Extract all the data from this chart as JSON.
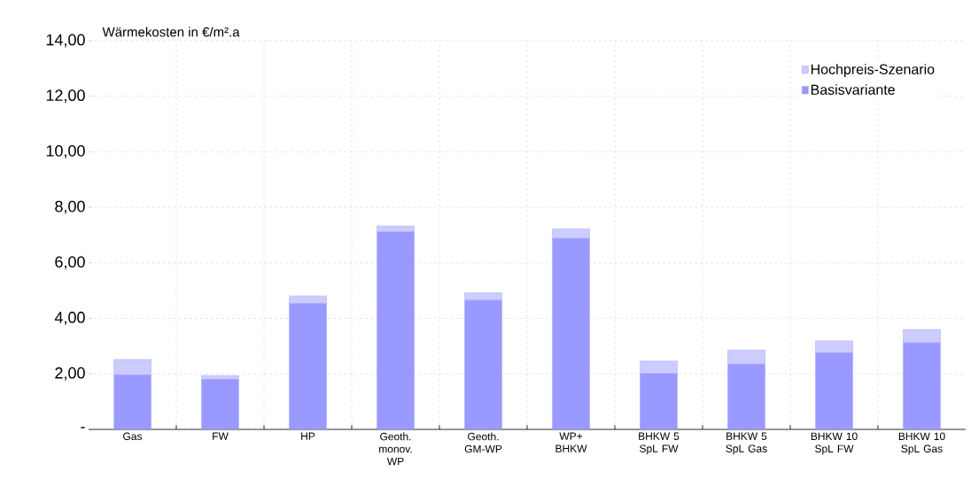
{
  "chart_data": {
    "type": "bar",
    "stacked": true,
    "ylabel": "Wärmekosten in €/m².a",
    "categories": [
      "Gas",
      "FW",
      "HP",
      "Geoth. monov. WP",
      "Geoth. GM-WP",
      "WP+ BHKW",
      "BHKW 5 SpL FW",
      "BHKW 5 SpL Gas",
      "BHKW 10 SpL FW",
      "BHKW 10 SpL Gas"
    ],
    "series": [
      {
        "name": "Basisvariante",
        "color": "#9999ff",
        "values": [
          1.96,
          1.8,
          4.53,
          7.11,
          4.65,
          6.88,
          2.01,
          2.35,
          2.76,
          3.12
        ]
      },
      {
        "name": "Hochpreis-Szenario",
        "color": "#ccccff",
        "values": [
          0.56,
          0.14,
          0.28,
          0.22,
          0.27,
          0.34,
          0.45,
          0.51,
          0.43,
          0.48
        ]
      }
    ],
    "ylim": [
      0,
      14
    ],
    "yticks": [
      {
        "value": 0,
        "label": "-"
      },
      {
        "value": 2,
        "label": "2,00"
      },
      {
        "value": 4,
        "label": "4,00"
      },
      {
        "value": 6,
        "label": "6,00"
      },
      {
        "value": 8,
        "label": "8,00"
      },
      {
        "value": 10,
        "label": "10,00"
      },
      {
        "value": 12,
        "label": "12,00"
      },
      {
        "value": 14,
        "label": "14,00"
      }
    ],
    "grid": true,
    "legend": "top right"
  }
}
